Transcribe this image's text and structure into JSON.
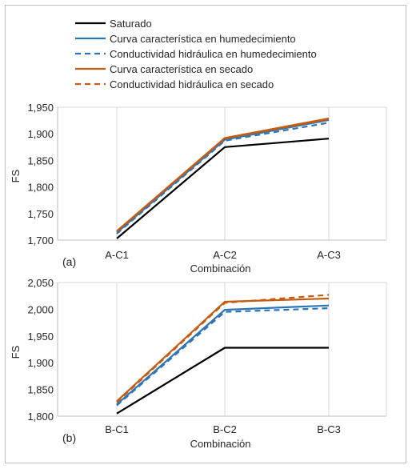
{
  "legend": {
    "items": [
      {
        "label": "Saturado",
        "color": "#000000",
        "dash": false
      },
      {
        "label": "Curva característica en humedecimiento",
        "color": "#2e75b6",
        "dash": false
      },
      {
        "label": "Conductividad hidráulica en humedecimiento",
        "color": "#2e75b6",
        "dash": true
      },
      {
        "label": "Curva característica en secado",
        "color": "#c55a11",
        "dash": false
      },
      {
        "label": "Conductividad hidráulica en secado",
        "color": "#c55a11",
        "dash": true
      }
    ]
  },
  "chart_data": [
    {
      "type": "line",
      "panel_label": "(a)",
      "ylabel": "FS",
      "xlabel": "Combinación",
      "categories": [
        "A-C1",
        "A-C2",
        "A-C3"
      ],
      "ylim": [
        1.7,
        1.95
      ],
      "yticks": [
        1.7,
        1.75,
        1.8,
        1.85,
        1.9,
        1.95
      ],
      "ytick_labels": [
        "1,700",
        "1,750",
        "1,800",
        "1,850",
        "1,900",
        "1,950"
      ],
      "grid": "vertical",
      "series": [
        {
          "name": "Saturado",
          "values": [
            1.703,
            1.875,
            1.891
          ]
        },
        {
          "name": "Curva característica en humedecimiento",
          "values": [
            1.714,
            1.889,
            1.926
          ]
        },
        {
          "name": "Conductividad hidráulica en humedecimiento",
          "values": [
            1.712,
            1.887,
            1.921
          ]
        },
        {
          "name": "Curva característica en secado",
          "values": [
            1.717,
            1.892,
            1.929
          ]
        },
        {
          "name": "Conductividad hidráulica en secado",
          "values": [
            1.716,
            1.891,
            1.927
          ]
        }
      ]
    },
    {
      "type": "line",
      "panel_label": "(b)",
      "ylabel": "FS",
      "xlabel": "Combinación",
      "categories": [
        "B-C1",
        "B-C2",
        "B-C3"
      ],
      "ylim": [
        1.8,
        2.05
      ],
      "yticks": [
        1.8,
        1.85,
        1.9,
        1.95,
        2.0,
        2.05
      ],
      "ytick_labels": [
        "1,800",
        "1,850",
        "1,900",
        "1,950",
        "2,000",
        "2,050"
      ],
      "grid": "vertical",
      "series": [
        {
          "name": "Saturado",
          "values": [
            1.805,
            1.928,
            1.928
          ]
        },
        {
          "name": "Curva característica en humedecimiento",
          "values": [
            1.822,
            1.999,
            2.007
          ]
        },
        {
          "name": "Conductividad hidráulica en humedecimiento",
          "values": [
            1.82,
            1.995,
            2.002
          ]
        },
        {
          "name": "Curva característica en secado",
          "values": [
            1.828,
            2.014,
            2.02
          ]
        },
        {
          "name": "Conductividad hidráulica en secado",
          "values": [
            1.826,
            2.012,
            2.027
          ]
        }
      ]
    }
  ]
}
